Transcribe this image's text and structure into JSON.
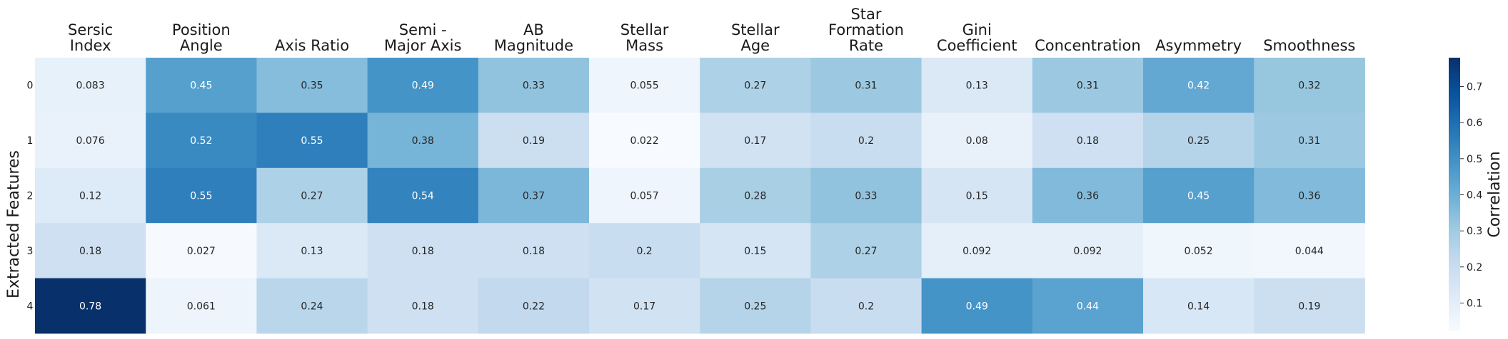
{
  "chart_data": {
    "type": "heatmap",
    "columns": [
      [
        "Sersic",
        "Index"
      ],
      [
        "Position",
        "Angle"
      ],
      [
        "Axis Ratio"
      ],
      [
        "Semi -",
        "Major Axis"
      ],
      [
        "AB",
        "Magnitude"
      ],
      [
        "Stellar",
        "Mass"
      ],
      [
        "Stellar",
        "Age"
      ],
      [
        "Star",
        "Formation",
        "Rate"
      ],
      [
        "Gini",
        "Coefficient"
      ],
      [
        "Concentration"
      ],
      [
        "Asymmetry"
      ],
      [
        "Smoothness"
      ]
    ],
    "rows": [
      "0",
      "1",
      "2",
      "3",
      "4"
    ],
    "values": [
      [
        0.083,
        0.45,
        0.35,
        0.49,
        0.33,
        0.055,
        0.27,
        0.31,
        0.13,
        0.31,
        0.42,
        0.32
      ],
      [
        0.076,
        0.52,
        0.55,
        0.38,
        0.19,
        0.022,
        0.17,
        0.2,
        0.08,
        0.18,
        0.25,
        0.31
      ],
      [
        0.12,
        0.55,
        0.27,
        0.54,
        0.37,
        0.057,
        0.28,
        0.33,
        0.15,
        0.36,
        0.45,
        0.36
      ],
      [
        0.18,
        0.027,
        0.13,
        0.18,
        0.18,
        0.2,
        0.15,
        0.27,
        0.092,
        0.092,
        0.052,
        0.044
      ],
      [
        0.78,
        0.061,
        0.24,
        0.18,
        0.22,
        0.17,
        0.25,
        0.2,
        0.49,
        0.44,
        0.14,
        0.19
      ]
    ],
    "ylabel": "Extracted Features",
    "colorbar": {
      "label": "Correlation",
      "range": [
        0.022,
        0.78
      ],
      "ticks": [
        0.1,
        0.2,
        0.3,
        0.4,
        0.5,
        0.6,
        0.7
      ],
      "colormap": "Blues"
    }
  }
}
